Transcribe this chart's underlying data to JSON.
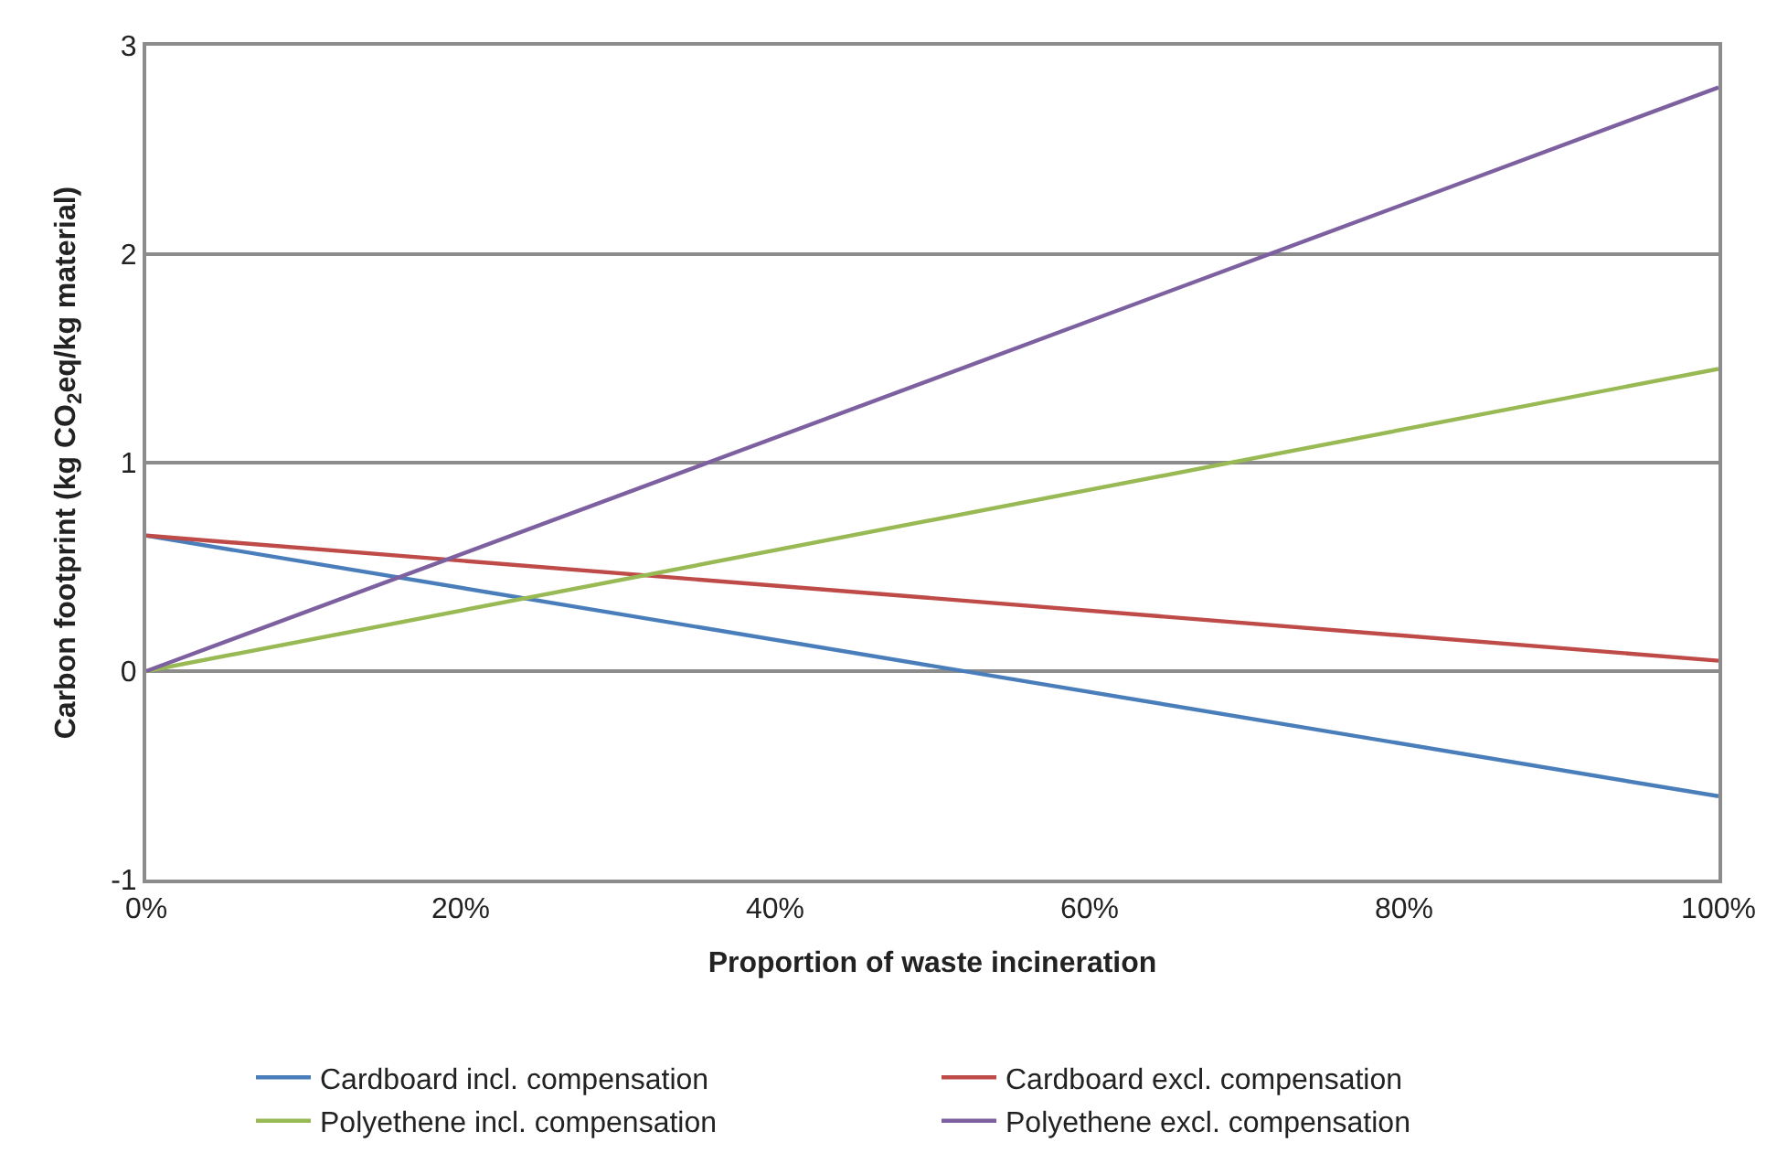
{
  "chart_data": {
    "type": "line",
    "xlabel": "Proportion of waste incineration",
    "ylabel": "Carbon footprint (kg CO$_{2}$eq/kg material)",
    "x": [
      0,
      100
    ],
    "series": [
      {
        "name": "Cardboard incl. compensation",
        "color": "#4a7ebb",
        "values": [
          0.65,
          -0.6
        ]
      },
      {
        "name": "Cardboard excl. compensation",
        "color": "#be4b48",
        "values": [
          0.65,
          0.05
        ]
      },
      {
        "name": "Polyethene incl. compensation",
        "color": "#98b954",
        "values": [
          0,
          1.45
        ]
      },
      {
        "name": "Polyethene excl. compensation",
        "color": "#7d60a0",
        "values": [
          0,
          2.8
        ]
      }
    ],
    "xlim": [
      0,
      100
    ],
    "xticks": [
      {
        "value": 0,
        "label": "0%"
      },
      {
        "value": 20,
        "label": "20%"
      },
      {
        "value": 40,
        "label": "40%"
      },
      {
        "value": 60,
        "label": "60%"
      },
      {
        "value": 80,
        "label": "80%"
      },
      {
        "value": 100,
        "label": "100%"
      }
    ],
    "ylim": [
      -1,
      3
    ],
    "yticks": [
      -1,
      0,
      1,
      2,
      3
    ],
    "grid": "y",
    "legend": "bottom",
    "marker": "none",
    "line_style": "solid"
  }
}
